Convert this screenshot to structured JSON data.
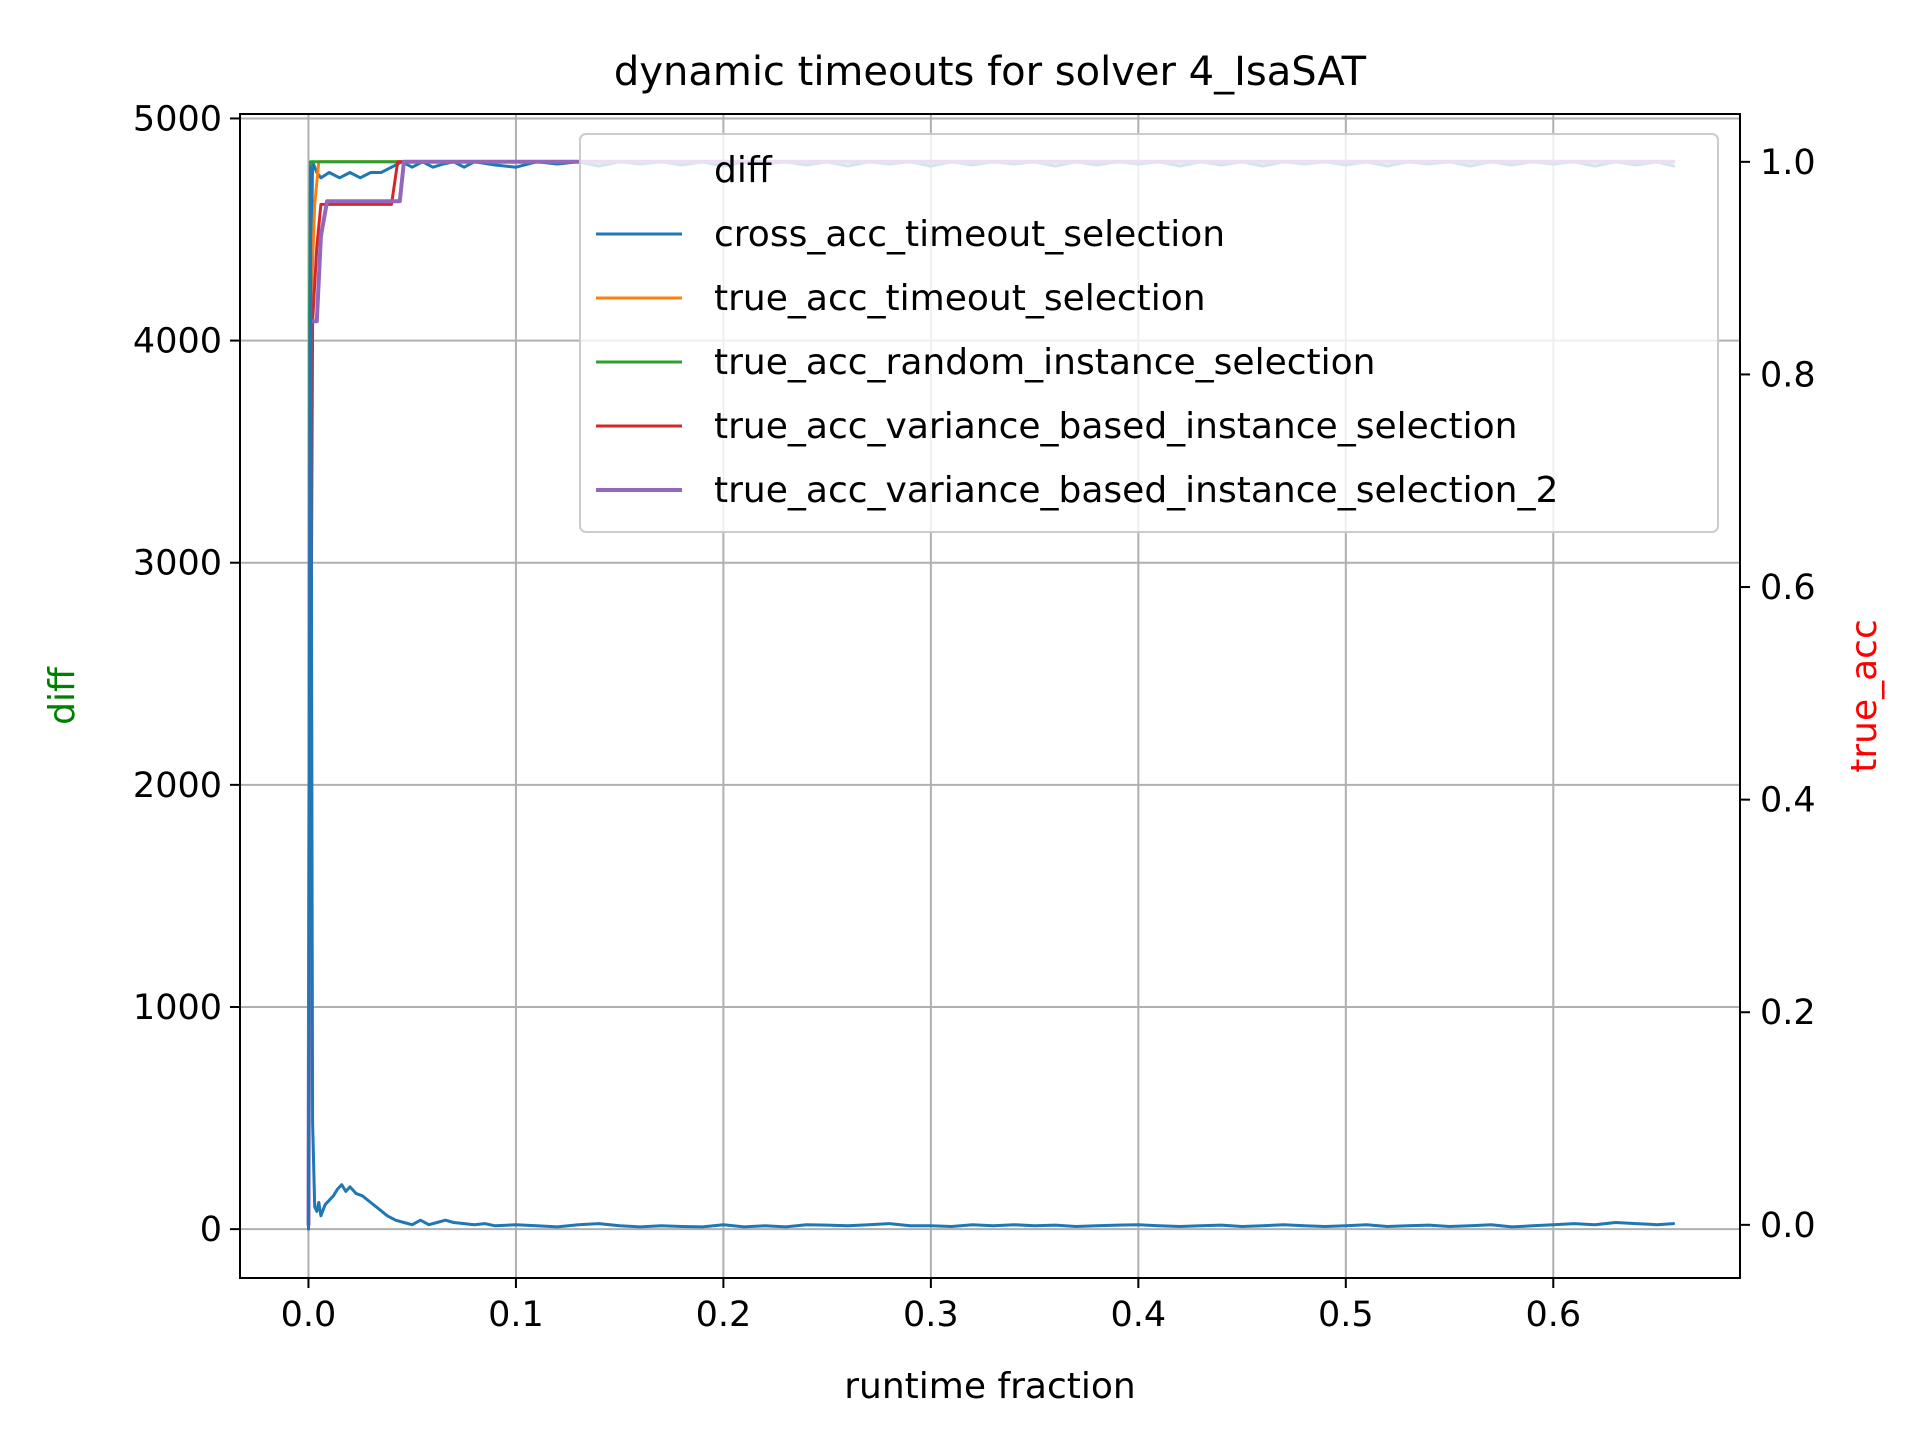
{
  "chart_data": {
    "type": "line",
    "title": "dynamic timeouts for solver 4_IsaSAT",
    "xlabel": "runtime fraction",
    "ylabel_left": "diff",
    "ylabel_right": "true_acc",
    "xlim": [
      -0.033,
      0.69
    ],
    "ylim_left": [
      -220,
      5020
    ],
    "ylim_right": [
      -0.05,
      1.045
    ],
    "xticks": [
      0.0,
      0.1,
      0.2,
      0.3,
      0.4,
      0.5,
      0.6
    ],
    "xtick_labels": [
      "0.0",
      "0.1",
      "0.2",
      "0.3",
      "0.4",
      "0.5",
      "0.6"
    ],
    "yticks_left": [
      0,
      1000,
      2000,
      3000,
      4000,
      5000
    ],
    "ytick_labels_left": [
      "0",
      "1000",
      "2000",
      "3000",
      "4000",
      "5000"
    ],
    "yticks_right": [
      0.0,
      0.2,
      0.4,
      0.6,
      0.8,
      1.0
    ],
    "ytick_labels_right": [
      "0.0",
      "0.2",
      "0.4",
      "0.6",
      "0.8",
      "1.0"
    ],
    "grid": true,
    "legend_position": "upper-right",
    "colors": {
      "left_label": "#008000",
      "right_label": "#ff0000"
    },
    "series": [
      {
        "name": "diff",
        "axis": "left",
        "color": "#1f77b4",
        "width": 3,
        "x": [
          0.0,
          0.001,
          0.002,
          0.003,
          0.004,
          0.005,
          0.006,
          0.008,
          0.01,
          0.012,
          0.014,
          0.016,
          0.018,
          0.02,
          0.023,
          0.026,
          0.03,
          0.034,
          0.038,
          0.042,
          0.046,
          0.05,
          0.054,
          0.058,
          0.062,
          0.066,
          0.07,
          0.075,
          0.08,
          0.085,
          0.09,
          0.1,
          0.11,
          0.12,
          0.13,
          0.14,
          0.15,
          0.16,
          0.17,
          0.18,
          0.19,
          0.2,
          0.21,
          0.22,
          0.23,
          0.24,
          0.25,
          0.26,
          0.27,
          0.28,
          0.29,
          0.3,
          0.31,
          0.32,
          0.33,
          0.34,
          0.35,
          0.36,
          0.37,
          0.38,
          0.39,
          0.4,
          0.41,
          0.42,
          0.43,
          0.44,
          0.45,
          0.46,
          0.47,
          0.48,
          0.49,
          0.5,
          0.51,
          0.52,
          0.53,
          0.54,
          0.55,
          0.56,
          0.57,
          0.58,
          0.59,
          0.6,
          0.61,
          0.62,
          0.63,
          0.64,
          0.65,
          0.658
        ],
        "y": [
          0,
          4780,
          480,
          100,
          80,
          120,
          60,
          110,
          130,
          150,
          180,
          200,
          170,
          190,
          160,
          150,
          120,
          90,
          60,
          40,
          30,
          20,
          40,
          20,
          30,
          40,
          30,
          25,
          20,
          25,
          15,
          20,
          15,
          10,
          20,
          25,
          15,
          10,
          15,
          12,
          10,
          20,
          10,
          15,
          10,
          20,
          18,
          15,
          20,
          25,
          15,
          15,
          12,
          20,
          15,
          20,
          15,
          18,
          12,
          15,
          18,
          20,
          15,
          12,
          15,
          18,
          12,
          15,
          20,
          15,
          12,
          15,
          20,
          12,
          15,
          18,
          12,
          15,
          20,
          10,
          15,
          20,
          25,
          20,
          30,
          25,
          20,
          25
        ]
      },
      {
        "name": "cross_acc_timeout_selection",
        "axis": "right",
        "color": "#1f77b4",
        "width": 3,
        "x": [
          0.0,
          0.001,
          0.002,
          0.004,
          0.006,
          0.01,
          0.015,
          0.02,
          0.025,
          0.03,
          0.035,
          0.04,
          0.045,
          0.05,
          0.055,
          0.06,
          0.065,
          0.07,
          0.075,
          0.08,
          0.09,
          0.1,
          0.11,
          0.12,
          0.13,
          0.14,
          0.15,
          0.16,
          0.17,
          0.18,
          0.19,
          0.2,
          0.21,
          0.22,
          0.23,
          0.24,
          0.25,
          0.26,
          0.27,
          0.28,
          0.29,
          0.3,
          0.31,
          0.32,
          0.33,
          0.34,
          0.35,
          0.36,
          0.37,
          0.38,
          0.39,
          0.4,
          0.41,
          0.42,
          0.43,
          0.44,
          0.45,
          0.46,
          0.47,
          0.48,
          0.49,
          0.5,
          0.51,
          0.52,
          0.53,
          0.54,
          0.55,
          0.56,
          0.57,
          0.58,
          0.59,
          0.6,
          0.61,
          0.62,
          0.63,
          0.64,
          0.65,
          0.658
        ],
        "y": [
          0.0,
          0.85,
          1.0,
          0.99,
          0.985,
          0.99,
          0.985,
          0.99,
          0.985,
          0.99,
          0.99,
          0.995,
          1.0,
          0.995,
          1.0,
          0.995,
          0.998,
          1.0,
          0.995,
          1.0,
          0.997,
          0.995,
          1.0,
          0.998,
          1.0,
          0.996,
          1.0,
          0.998,
          1.0,
          0.997,
          1.0,
          0.996,
          1.0,
          0.998,
          1.0,
          0.997,
          1.0,
          0.996,
          1.0,
          0.998,
          1.0,
          0.996,
          1.0,
          0.997,
          1.0,
          0.998,
          1.0,
          0.996,
          1.0,
          0.997,
          1.0,
          0.998,
          1.0,
          0.996,
          1.0,
          0.997,
          1.0,
          0.996,
          1.0,
          0.998,
          1.0,
          0.997,
          1.0,
          0.996,
          1.0,
          0.998,
          1.0,
          0.996,
          1.0,
          0.997,
          1.0,
          0.998,
          1.0,
          0.996,
          1.0,
          0.997,
          1.0,
          0.996
        ]
      },
      {
        "name": "true_acc_timeout_selection",
        "axis": "right",
        "color": "#ff7f0e",
        "width": 3,
        "x": [
          0.0,
          0.001,
          0.003,
          0.005,
          0.658
        ],
        "y": [
          0.0,
          0.85,
          0.96,
          1.0,
          1.0
        ]
      },
      {
        "name": "true_acc_random_instance_selection",
        "axis": "right",
        "color": "#2ca02c",
        "width": 3,
        "x": [
          0.0,
          0.0005,
          0.001,
          0.002,
          0.658
        ],
        "y": [
          0.0,
          0.85,
          1.0,
          1.0,
          1.0
        ]
      },
      {
        "name": "true_acc_variance_based_instance_selection",
        "axis": "right",
        "color": "#d62728",
        "width": 3,
        "x": [
          0.0,
          0.002,
          0.004,
          0.006,
          0.009,
          0.04,
          0.043,
          0.658
        ],
        "y": [
          0.0,
          0.85,
          0.92,
          0.96,
          0.96,
          0.96,
          1.0,
          1.0
        ]
      },
      {
        "name": "true_acc_variance_based_instance_selection_2",
        "axis": "right",
        "color": "#9467bd",
        "width": 4,
        "x": [
          0.0,
          0.001,
          0.004,
          0.006,
          0.009,
          0.044,
          0.046,
          0.658
        ],
        "y": [
          0.0,
          0.85,
          0.85,
          0.93,
          0.963,
          0.963,
          1.0,
          1.0
        ]
      }
    ]
  }
}
